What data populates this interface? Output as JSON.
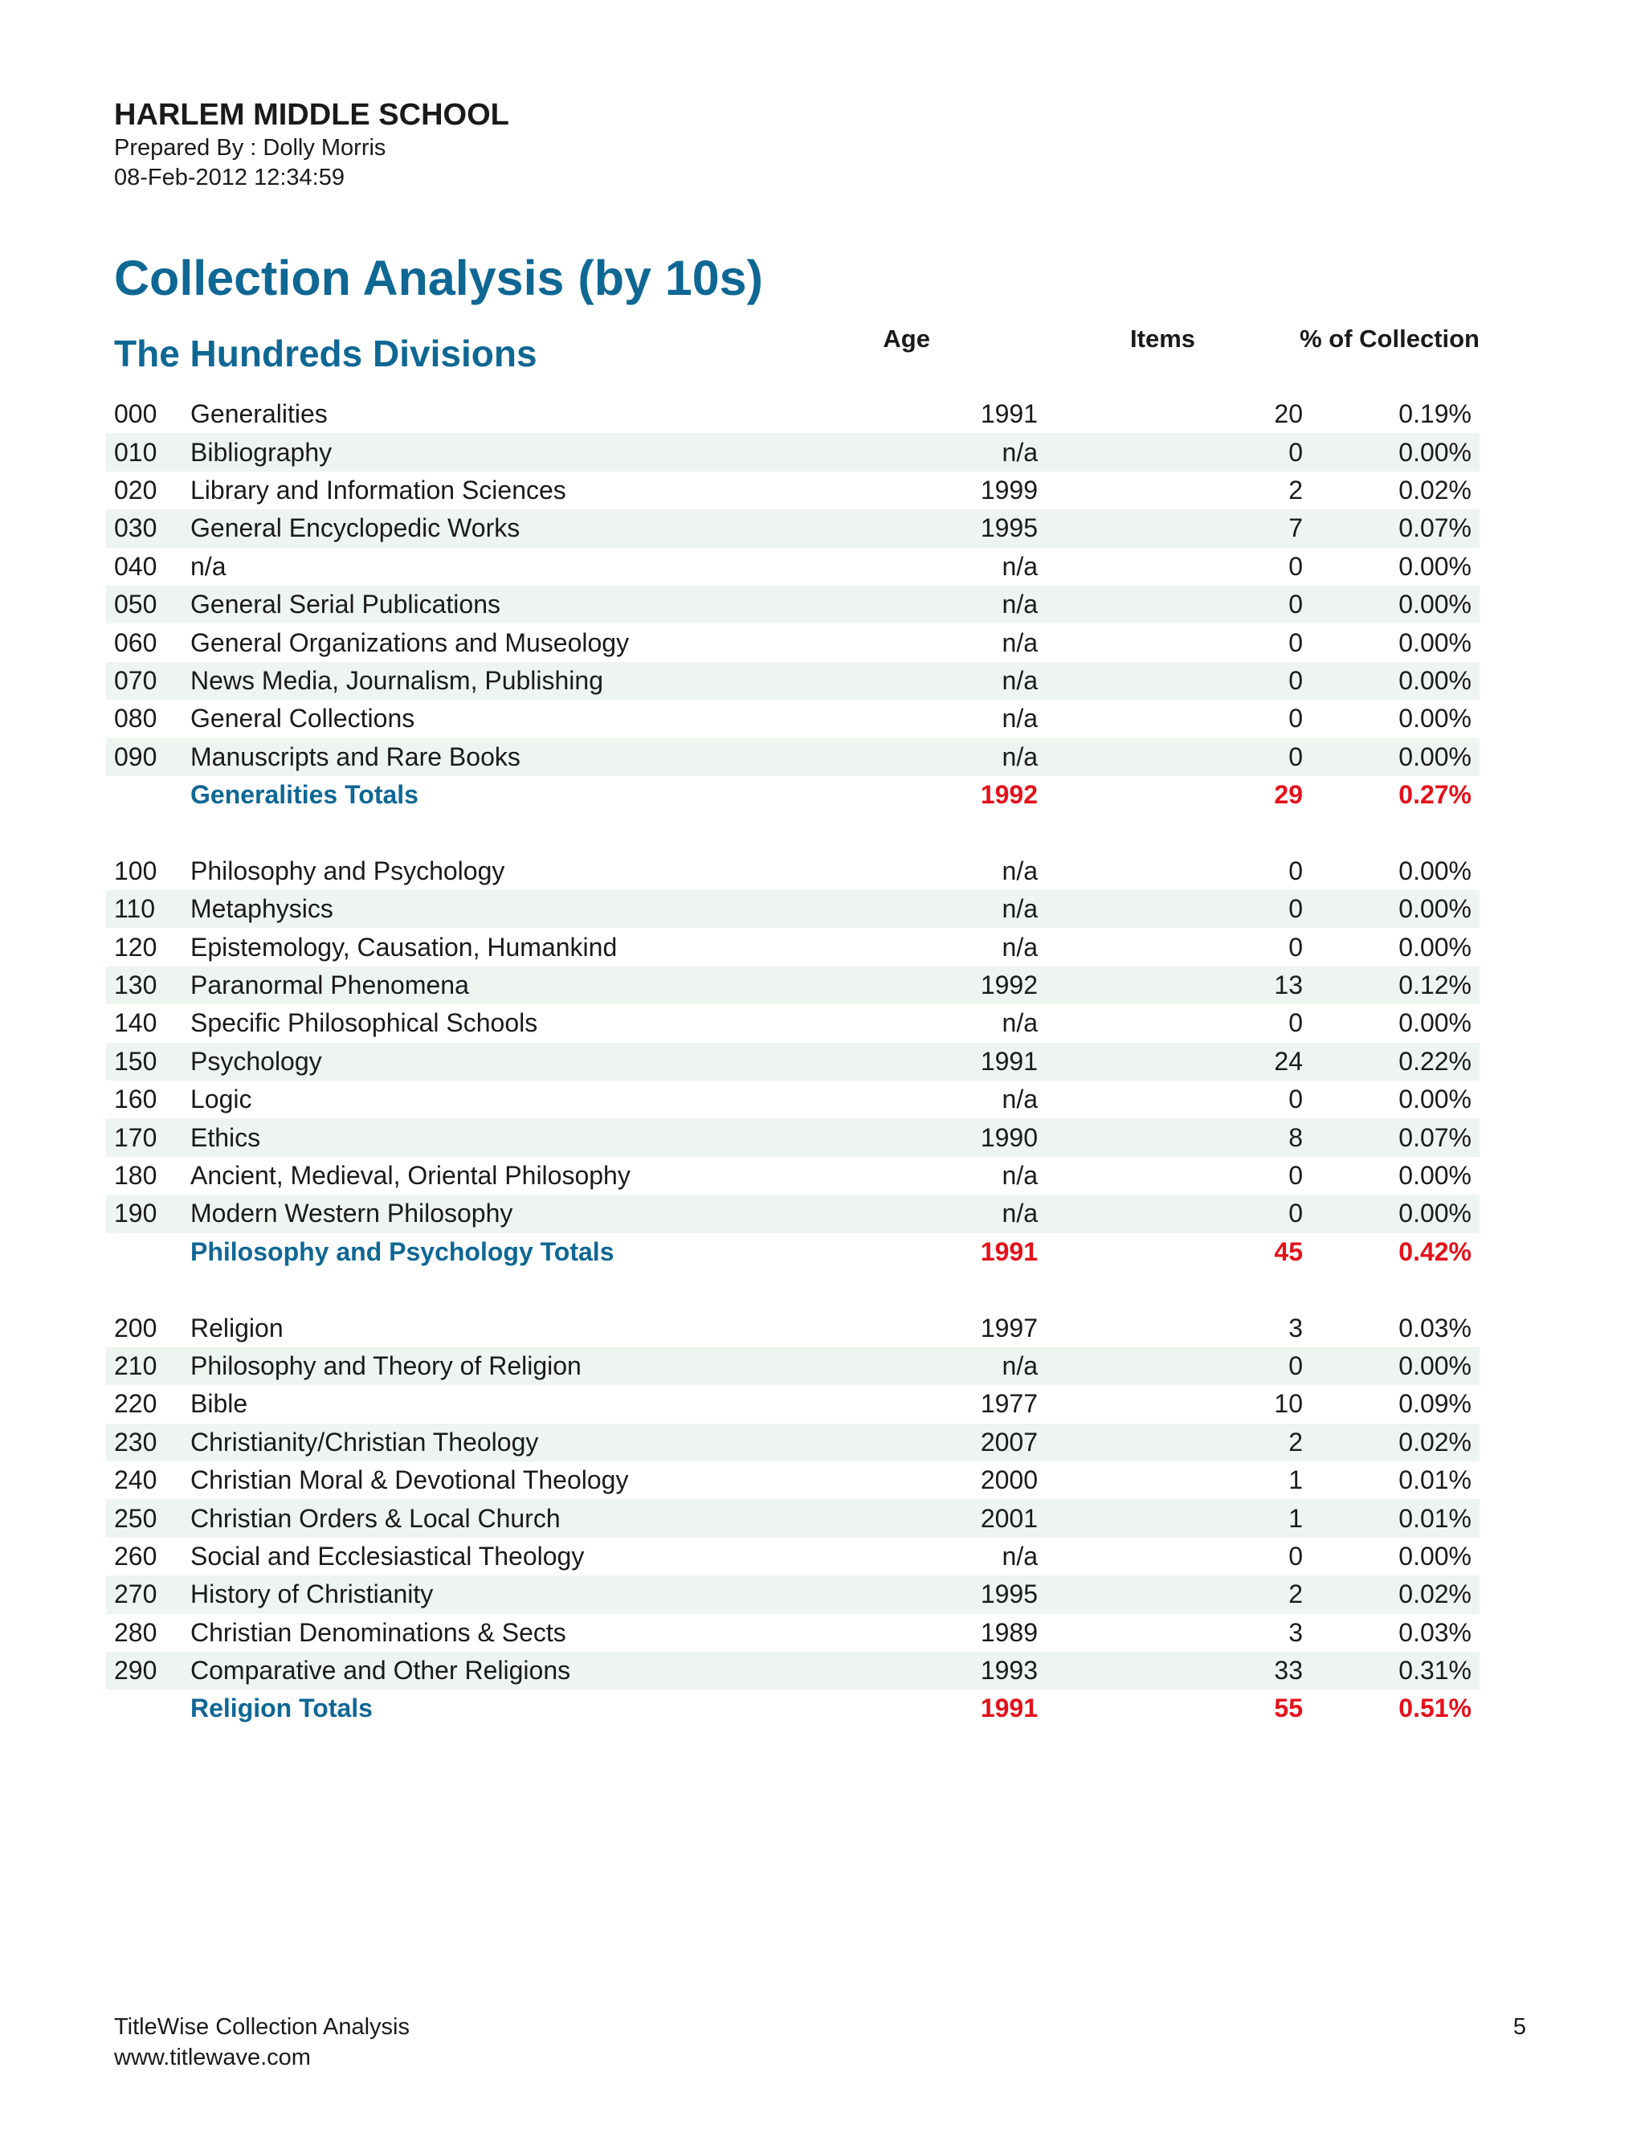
{
  "header": {
    "school": "HARLEM MIDDLE SCHOOL",
    "prepared_by": "Prepared By : Dolly Morris",
    "timestamp": "08-Feb-2012 12:34:59"
  },
  "report_title": "Collection Analysis (by 10s)",
  "section_title": "The Hundreds Divisions",
  "columns": {
    "age": "Age",
    "items": "Items",
    "pct": "% of Collection"
  },
  "rows": [
    {
      "code": "000",
      "name": "Generalities",
      "age": "1991",
      "items": "20",
      "pct": "0.19%"
    },
    {
      "code": "010",
      "name": "Bibliography",
      "age": "n/a",
      "items": "0",
      "pct": "0.00%"
    },
    {
      "code": "020",
      "name": "Library and Information Sciences",
      "age": "1999",
      "items": "2",
      "pct": "0.02%"
    },
    {
      "code": "030",
      "name": "General Encyclopedic Works",
      "age": "1995",
      "items": "7",
      "pct": "0.07%"
    },
    {
      "code": "040",
      "name": "n/a",
      "age": "n/a",
      "items": "0",
      "pct": "0.00%"
    },
    {
      "code": "050",
      "name": "General Serial Publications",
      "age": "n/a",
      "items": "0",
      "pct": "0.00%"
    },
    {
      "code": "060",
      "name": "General Organizations and Museology",
      "age": "n/a",
      "items": "0",
      "pct": "0.00%"
    },
    {
      "code": "070",
      "name": "News Media, Journalism, Publishing",
      "age": "n/a",
      "items": "0",
      "pct": "0.00%"
    },
    {
      "code": "080",
      "name": "General Collections",
      "age": "n/a",
      "items": "0",
      "pct": "0.00%"
    },
    {
      "code": "090",
      "name": "Manuscripts and Rare Books",
      "age": "n/a",
      "items": "0",
      "pct": "0.00%"
    },
    {
      "code": "",
      "name": "Generalities Totals",
      "age": "1992",
      "items": "29",
      "pct": "0.27%",
      "total": true
    },
    {
      "code": "",
      "name": "",
      "age": "",
      "items": "",
      "pct": "",
      "blank": true
    },
    {
      "code": "100",
      "name": "Philosophy and Psychology",
      "age": "n/a",
      "items": "0",
      "pct": "0.00%"
    },
    {
      "code": "110",
      "name": "Metaphysics",
      "age": "n/a",
      "items": "0",
      "pct": "0.00%"
    },
    {
      "code": "120",
      "name": "Epistemology, Causation, Humankind",
      "age": "n/a",
      "items": "0",
      "pct": "0.00%"
    },
    {
      "code": "130",
      "name": "Paranormal Phenomena",
      "age": "1992",
      "items": "13",
      "pct": "0.12%"
    },
    {
      "code": "140",
      "name": "Specific Philosophical Schools",
      "age": "n/a",
      "items": "0",
      "pct": "0.00%"
    },
    {
      "code": "150",
      "name": "Psychology",
      "age": "1991",
      "items": "24",
      "pct": "0.22%"
    },
    {
      "code": "160",
      "name": "Logic",
      "age": "n/a",
      "items": "0",
      "pct": "0.00%"
    },
    {
      "code": "170",
      "name": "Ethics",
      "age": "1990",
      "items": "8",
      "pct": "0.07%"
    },
    {
      "code": "180",
      "name": "Ancient, Medieval, Oriental Philosophy",
      "age": "n/a",
      "items": "0",
      "pct": "0.00%"
    },
    {
      "code": "190",
      "name": "Modern Western Philosophy",
      "age": "n/a",
      "items": "0",
      "pct": "0.00%"
    },
    {
      "code": "",
      "name": "Philosophy and Psychology Totals",
      "age": "1991",
      "items": "45",
      "pct": "0.42%",
      "total": true
    },
    {
      "code": "",
      "name": "",
      "age": "",
      "items": "",
      "pct": "",
      "blank": true
    },
    {
      "code": "200",
      "name": "Religion",
      "age": "1997",
      "items": "3",
      "pct": "0.03%"
    },
    {
      "code": "210",
      "name": "Philosophy and Theory of Religion",
      "age": "n/a",
      "items": "0",
      "pct": "0.00%"
    },
    {
      "code": "220",
      "name": "Bible",
      "age": "1977",
      "items": "10",
      "pct": "0.09%"
    },
    {
      "code": "230",
      "name": "Christianity/Christian Theology",
      "age": "2007",
      "items": "2",
      "pct": "0.02%"
    },
    {
      "code": "240",
      "name": "Christian Moral & Devotional Theology",
      "age": "2000",
      "items": "1",
      "pct": "0.01%"
    },
    {
      "code": "250",
      "name": "Christian Orders & Local Church",
      "age": "2001",
      "items": "1",
      "pct": "0.01%"
    },
    {
      "code": "260",
      "name": "Social and Ecclesiastical Theology",
      "age": "n/a",
      "items": "0",
      "pct": "0.00%"
    },
    {
      "code": "270",
      "name": "History of Christianity",
      "age": "1995",
      "items": "2",
      "pct": "0.02%"
    },
    {
      "code": "280",
      "name": "Christian Denominations & Sects",
      "age": "1989",
      "items": "3",
      "pct": "0.03%"
    },
    {
      "code": "290",
      "name": "Comparative and Other Religions",
      "age": "1993",
      "items": "33",
      "pct": "0.31%"
    },
    {
      "code": "",
      "name": "Religion Totals",
      "age": "1991",
      "items": "55",
      "pct": "0.51%",
      "total": true
    }
  ],
  "footer": {
    "product": "TitleWise Collection Analysis",
    "url": "www.titlewave.com",
    "page": "5"
  }
}
